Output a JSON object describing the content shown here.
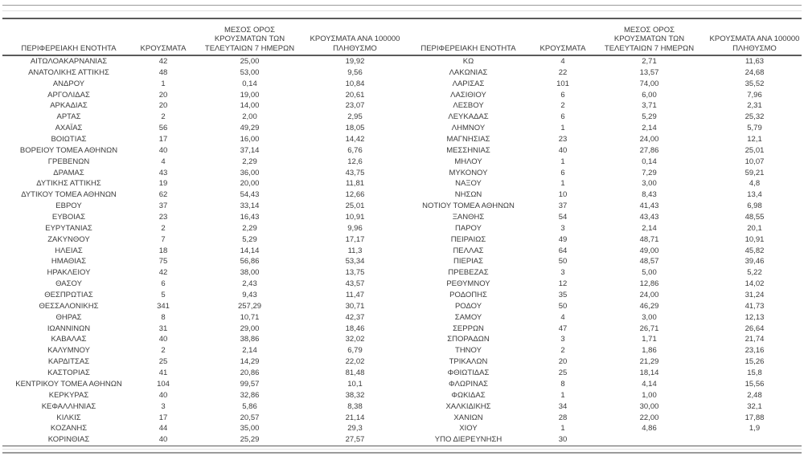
{
  "tables": [
    {
      "side": "left",
      "headers": {
        "region": "ΠΕΡΙΦΕΡΕΙΑΚΗ ΕΝΟΤΗΤΑ",
        "cases": "ΚΡΟΥΣΜΑΤΑ",
        "avg7": "ΜΕΣΟΣ ΟΡΟΣ\nΚΡΟΥΣΜΑΤΩΝ ΤΩΝ\nΤΕΛΕΥΤΑΙΩΝ 7 ΗΜΕΡΩΝ",
        "per100k": "ΚΡΟΥΣΜΑΤΑ ΑΝΑ 100000\nΠΛΗΘΥΣΜΟ"
      },
      "rows": [
        [
          "ΑΙΤΩΛΟΑΚΑΡΝΑΝΙΑΣ",
          "42",
          "25,00",
          "19,92"
        ],
        [
          "ΑΝΑΤΟΛΙΚΗΣ ΑΤΤΙΚΗΣ",
          "48",
          "53,00",
          "9,56"
        ],
        [
          "ΑΝΔΡΟΥ",
          "1",
          "0,14",
          "10,84"
        ],
        [
          "ΑΡΓΟΛΙΔΑΣ",
          "20",
          "19,00",
          "20,61"
        ],
        [
          "ΑΡΚΑΔΙΑΣ",
          "20",
          "14,00",
          "23,07"
        ],
        [
          "ΑΡΤΑΣ",
          "2",
          "2,00",
          "2,95"
        ],
        [
          "ΑΧΑΪΑΣ",
          "56",
          "49,29",
          "18,05"
        ],
        [
          "ΒΟΙΩΤΙΑΣ",
          "17",
          "16,00",
          "14,42"
        ],
        [
          "ΒΟΡΕΙΟΥ ΤΟΜΕΑ ΑΘΗΝΩΝ",
          "40",
          "37,14",
          "6,76"
        ],
        [
          "ΓΡΕΒΕΝΩΝ",
          "4",
          "2,29",
          "12,6"
        ],
        [
          "ΔΡΑΜΑΣ",
          "43",
          "36,00",
          "43,75"
        ],
        [
          "ΔΥΤΙΚΗΣ ΑΤΤΙΚΗΣ",
          "19",
          "20,00",
          "11,81"
        ],
        [
          "ΔΥΤΙΚΟΥ ΤΟΜΕΑ ΑΘΗΝΩΝ",
          "62",
          "54,43",
          "12,66"
        ],
        [
          "ΕΒΡΟΥ",
          "37",
          "33,14",
          "25,01"
        ],
        [
          "ΕΥΒΟΙΑΣ",
          "23",
          "16,43",
          "10,91"
        ],
        [
          "ΕΥΡΥΤΑΝΙΑΣ",
          "2",
          "2,29",
          "9,96"
        ],
        [
          "ΖΑΚΥΝΘΟΥ",
          "7",
          "5,29",
          "17,17"
        ],
        [
          "ΗΛΕΙΑΣ",
          "18",
          "14,14",
          "11,3"
        ],
        [
          "ΗΜΑΘΙΑΣ",
          "75",
          "56,86",
          "53,34"
        ],
        [
          "ΗΡΑΚΛΕΙΟΥ",
          "42",
          "38,00",
          "13,75"
        ],
        [
          "ΘΑΣΟΥ",
          "6",
          "2,43",
          "43,57"
        ],
        [
          "ΘΕΣΠΡΩΤΙΑΣ",
          "5",
          "9,43",
          "11,47"
        ],
        [
          "ΘΕΣΣΑΛΟΝΙΚΗΣ",
          "341",
          "257,29",
          "30,71"
        ],
        [
          "ΘΗΡΑΣ",
          "8",
          "10,71",
          "42,37"
        ],
        [
          "ΙΩΑΝΝΙΝΩΝ",
          "31",
          "29,00",
          "18,46"
        ],
        [
          "ΚΑΒΑΛΑΣ",
          "40",
          "38,86",
          "32,02"
        ],
        [
          "ΚΑΛΥΜΝΟΥ",
          "2",
          "2,14",
          "6,79"
        ],
        [
          "ΚΑΡΔΙΤΣΑΣ",
          "25",
          "14,29",
          "22,02"
        ],
        [
          "ΚΑΣΤΟΡΙΑΣ",
          "41",
          "20,86",
          "81,48"
        ],
        [
          "ΚΕΝΤΡΙΚΟΥ ΤΟΜΕΑ ΑΘΗΝΩΝ",
          "104",
          "99,57",
          "10,1"
        ],
        [
          "ΚΕΡΚΥΡΑΣ",
          "40",
          "32,86",
          "38,32"
        ],
        [
          "ΚΕΦΑΛΛΗΝΙΑΣ",
          "3",
          "5,86",
          "8,38"
        ],
        [
          "ΚΙΛΚΙΣ",
          "17",
          "20,57",
          "21,14"
        ],
        [
          "ΚΟΖΑΝΗΣ",
          "44",
          "35,00",
          "29,3"
        ],
        [
          "ΚΟΡΙΝΘΙΑΣ",
          "40",
          "25,29",
          "27,57"
        ]
      ]
    },
    {
      "side": "right",
      "headers": {
        "region": "ΠΕΡΙΦΕΡΕΙΑΚΗ ΕΝΟΤΗΤΑ",
        "cases": "ΚΡΟΥΣΜΑΤΑ",
        "avg7": "ΜΕΣΟΣ ΟΡΟΣ\nΚΡΟΥΣΜΑΤΩΝ ΤΩΝ\nΤΕΛΕΥΤΑΙΩΝ 7 ΗΜΕΡΩΝ",
        "per100k": "ΚΡΟΥΣΜΑΤΑ ΑΝΑ 100000\nΠΛΗΘΥΣΜΟ"
      },
      "rows": [
        [
          "ΚΩ",
          "4",
          "2,71",
          "11,63"
        ],
        [
          "ΛΑΚΩΝΙΑΣ",
          "22",
          "13,57",
          "24,68"
        ],
        [
          "ΛΑΡΙΣΑΣ",
          "101",
          "74,00",
          "35,52"
        ],
        [
          "ΛΑΣΙΘΙΟΥ",
          "6",
          "6,00",
          "7,96"
        ],
        [
          "ΛΕΣΒΟΥ",
          "2",
          "3,71",
          "2,31"
        ],
        [
          "ΛΕΥΚΑΔΑΣ",
          "6",
          "5,29",
          "25,32"
        ],
        [
          "ΛΗΜΝΟΥ",
          "1",
          "2,14",
          "5,79"
        ],
        [
          "ΜΑΓΝΗΣΙΑΣ",
          "23",
          "24,00",
          "12,1"
        ],
        [
          "ΜΕΣΣΗΝΙΑΣ",
          "40",
          "27,86",
          "25,01"
        ],
        [
          "ΜΗΛΟΥ",
          "1",
          "0,14",
          "10,07"
        ],
        [
          "ΜΥΚΟΝΟΥ",
          "6",
          "7,29",
          "59,21"
        ],
        [
          "ΝΑΞΟΥ",
          "1",
          "3,00",
          "4,8"
        ],
        [
          "ΝΗΣΩΝ",
          "10",
          "8,43",
          "13,4"
        ],
        [
          "ΝΟΤΙΟΥ ΤΟΜΕΑ ΑΘΗΝΩΝ",
          "37",
          "41,43",
          "6,98"
        ],
        [
          "ΞΑΝΘΗΣ",
          "54",
          "43,43",
          "48,55"
        ],
        [
          "ΠΑΡΟΥ",
          "3",
          "2,14",
          "20,1"
        ],
        [
          "ΠΕΙΡΑΙΩΣ",
          "49",
          "48,71",
          "10,91"
        ],
        [
          "ΠΕΛΛΑΣ",
          "64",
          "49,00",
          "45,82"
        ],
        [
          "ΠΙΕΡΙΑΣ",
          "50",
          "48,57",
          "39,46"
        ],
        [
          "ΠΡΕΒΕΖΑΣ",
          "3",
          "5,00",
          "5,22"
        ],
        [
          "ΡΕΘΥΜΝΟΥ",
          "12",
          "12,86",
          "14,02"
        ],
        [
          "ΡΟΔΟΠΗΣ",
          "35",
          "24,00",
          "31,24"
        ],
        [
          "ΡΟΔΟΥ",
          "50",
          "46,29",
          "41,73"
        ],
        [
          "ΣΑΜΟΥ",
          "4",
          "3,00",
          "12,13"
        ],
        [
          "ΣΕΡΡΩΝ",
          "47",
          "26,71",
          "26,64"
        ],
        [
          "ΣΠΟΡΑΔΩΝ",
          "3",
          "1,71",
          "21,74"
        ],
        [
          "ΤΗΝΟΥ",
          "2",
          "1,86",
          "23,16"
        ],
        [
          "ΤΡΙΚΑΛΩΝ",
          "20",
          "21,29",
          "15,26"
        ],
        [
          "ΦΘΙΩΤΙΔΑΣ",
          "25",
          "18,14",
          "15,8"
        ],
        [
          "ΦΛΩΡΙΝΑΣ",
          "8",
          "4,14",
          "15,56"
        ],
        [
          "ΦΩΚΙΔΑΣ",
          "1",
          "1,00",
          "2,48"
        ],
        [
          "ΧΑΛΚΙΔΙΚΗΣ",
          "34",
          "30,00",
          "32,1"
        ],
        [
          "ΧΑΝΙΩΝ",
          "28",
          "22,00",
          "17,88"
        ],
        [
          "ΧΙΟΥ",
          "1",
          "4,86",
          "1,9"
        ],
        [
          "ΥΠΟ ΔΙΕΡΕΥΝΗΣΗ",
          "30",
          "",
          ""
        ]
      ]
    }
  ],
  "colors": {
    "text": "#3b3b3b",
    "rule_dark": "#5a5a5a",
    "rule_gray": "#9b9b9b",
    "rule_light": "#e2e2e2"
  }
}
